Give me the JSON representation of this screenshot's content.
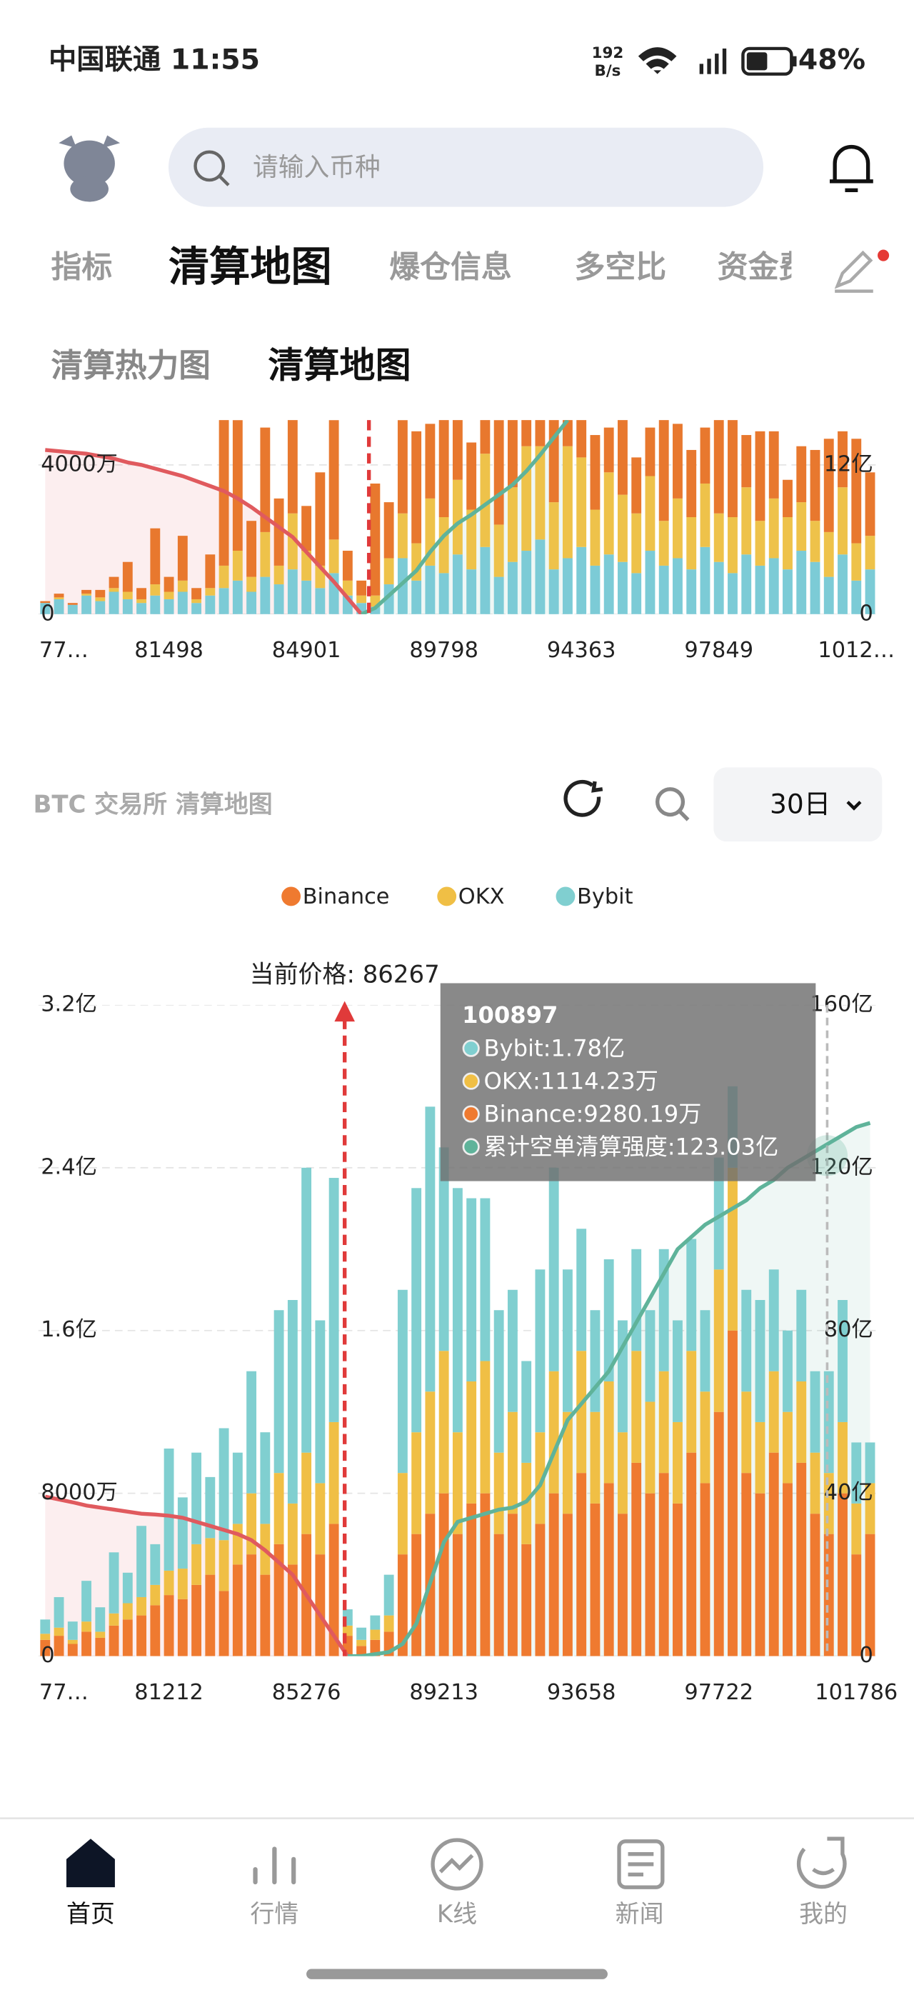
{
  "status_bar": {
    "carrier_time": "中国联通 11:55",
    "net_speed": "192",
    "net_unit": "B/s",
    "battery": "48%"
  },
  "search": {
    "placeholder": "请输入币种"
  },
  "tabs": [
    "指标",
    "清算地图",
    "爆仓信息",
    "多空比",
    "资金费"
  ],
  "sub_tabs": [
    "清算热力图",
    "清算地图"
  ],
  "section": {
    "title": "BTC 交易所 清算地图",
    "period": "30日"
  },
  "chart_data": [
    {
      "type": "bar",
      "stacked": true,
      "grid": true,
      "categories": [
        "77…",
        null,
        null,
        null,
        null,
        null,
        null,
        null,
        null,
        "81498",
        null,
        null,
        null,
        null,
        null,
        null,
        null,
        null,
        null,
        "84901",
        null,
        null,
        null,
        null,
        null,
        null,
        null,
        null,
        null,
        "89798",
        null,
        null,
        null,
        null,
        null,
        null,
        null,
        null,
        null,
        "94363",
        null,
        null,
        null,
        null,
        null,
        null,
        null,
        null,
        null,
        "97849",
        null,
        null,
        null,
        null,
        null,
        null,
        null,
        null,
        null,
        "1012…",
        null
      ],
      "ylim": [
        0,
        5200
      ],
      "yticks": [
        0,
        {
          "value": 4000,
          "label": "4000万"
        }
      ],
      "y2lim": [
        0,
        15.6
      ],
      "y2ticks": [
        0,
        {
          "value": 12,
          "label": "12亿"
        }
      ],
      "series": [
        {
          "color": "#7ccbd6",
          "values": [
            300,
            400,
            250,
            500,
            350,
            600,
            400,
            300,
            500,
            400,
            600,
            300,
            500,
            700,
            900,
            600,
            1000,
            800,
            1200,
            900,
            700,
            1100,
            500,
            300,
            200,
            800,
            1500,
            900,
            1300,
            1100,
            1600,
            1200,
            1800,
            1000,
            1400,
            1700,
            2000,
            1200,
            1500,
            1800,
            1300,
            1600,
            1400,
            1100,
            1700,
            1300,
            1500,
            1200,
            1800,
            1400,
            1100,
            1600,
            1300,
            1500,
            1200,
            1700,
            1400,
            1000,
            1600,
            900,
            1200
          ]
        },
        {
          "color": "#eec24a",
          "values": [
            0,
            50,
            0,
            50,
            100,
            100,
            200,
            100,
            300,
            200,
            300,
            100,
            200,
            600,
            800,
            400,
            1200,
            500,
            1500,
            800,
            600,
            900,
            400,
            200,
            300,
            700,
            1200,
            1000,
            1800,
            1500,
            2000,
            1600,
            2500,
            1400,
            2000,
            2800,
            2500,
            1800,
            3000,
            2400,
            1500,
            2200,
            1800,
            1600,
            2000,
            1200,
            1600,
            1400,
            1700,
            1300,
            1500,
            1800,
            1200,
            1600,
            1400,
            1300,
            1100,
            1200,
            1800,
            1000,
            900
          ]
        },
        {
          "color": "#e8782e",
          "values": [
            50,
            100,
            50,
            100,
            200,
            300,
            800,
            300,
            1500,
            400,
            1200,
            300,
            900,
            4500,
            3500,
            1500,
            2800,
            1800,
            3600,
            1200,
            2500,
            3200,
            800,
            400,
            3000,
            1500,
            2500,
            3000,
            2000,
            3500,
            2200,
            1800,
            1500,
            2800,
            2600,
            1200,
            1500,
            3000,
            1400,
            1800,
            2000,
            1200,
            2200,
            1500,
            1300,
            2800,
            2000,
            1800,
            1500,
            2600,
            2700,
            1400,
            2400,
            1800,
            1000,
            1500,
            1900,
            2500,
            1500,
            2800,
            1700
          ]
        },
        {
          "type": "line",
          "axis": "y2",
          "color": "#e05a5e",
          "values": [
            13.2,
            13.1,
            13,
            12.9,
            12.7,
            12.5,
            12.2,
            12,
            11.7,
            11.4,
            11.1,
            10.7,
            10.3,
            9.9,
            9.3,
            8.6,
            7.8,
            7,
            6.2,
            5,
            3.8,
            2.6,
            1.3,
            0,
            null,
            null,
            null,
            null,
            null,
            null,
            null,
            null,
            null,
            null,
            null,
            null,
            null,
            null,
            null,
            null,
            null,
            null,
            null,
            null,
            null,
            null,
            null,
            null,
            null,
            null,
            null,
            null,
            null,
            null,
            null,
            null,
            null,
            null,
            null,
            null,
            null
          ]
        },
        {
          "type": "line",
          "axis": "y2",
          "color": "#5fb39a",
          "values": [
            null,
            null,
            null,
            null,
            null,
            null,
            null,
            null,
            null,
            null,
            null,
            null,
            null,
            null,
            null,
            null,
            null,
            null,
            null,
            null,
            null,
            null,
            null,
            0,
            0.5,
            1.5,
            2.5,
            3.5,
            5,
            6.3,
            7.3,
            8,
            8.8,
            9.6,
            10.4,
            11.5,
            12.8,
            14.2,
            15.6,
            null,
            null,
            null,
            null,
            null,
            null,
            null,
            null,
            null,
            null,
            null,
            null,
            null,
            null,
            null,
            null,
            null,
            null,
            null,
            null,
            null,
            null
          ]
        }
      ]
    },
    {
      "type": "bar",
      "stacked": true,
      "grid": true,
      "legend": true,
      "annotation": "当前价格: 86267",
      "categories": [
        "77…",
        null,
        null,
        null,
        null,
        null,
        null,
        null,
        null,
        "81212",
        null,
        null,
        null,
        null,
        null,
        null,
        null,
        null,
        null,
        "85276",
        null,
        null,
        null,
        null,
        null,
        null,
        null,
        null,
        null,
        "89213",
        null,
        null,
        null,
        null,
        null,
        null,
        null,
        null,
        null,
        "93658",
        null,
        null,
        null,
        null,
        null,
        null,
        null,
        null,
        null,
        "97722",
        null,
        null,
        null,
        null,
        null,
        null,
        null,
        null,
        null,
        "101786",
        null
      ],
      "ylim": [
        0,
        32000
      ],
      "yticks": [
        0,
        {
          "value": 8000,
          "label": "8000万"
        },
        {
          "value": 16000,
          "label": "1.6亿"
        },
        {
          "value": 24000,
          "label": "2.4亿"
        },
        {
          "value": 32000,
          "label": "3.2亿"
        }
      ],
      "y2lim": [
        0,
        160
      ],
      "y2ticks": [
        0,
        {
          "value": 40,
          "label": "40亿"
        },
        {
          "value": 80,
          "label": "80亿"
        },
        {
          "value": 120,
          "label": "120亿"
        },
        {
          "value": 160,
          "label": "160亿"
        }
      ],
      "series": [
        {
          "name": "Binance",
          "color": "#ef7a30",
          "values": [
            800,
            1000,
            600,
            1200,
            900,
            1500,
            1800,
            2000,
            2500,
            3000,
            2800,
            3500,
            4000,
            3200,
            4500,
            5000,
            4000,
            5500,
            4500,
            6000,
            5000,
            6500,
            1000,
            500,
            800,
            1200,
            5000,
            6000,
            7000,
            8000,
            6000,
            7500,
            8000,
            6000,
            7000,
            5500,
            6500,
            8000,
            7000,
            9000,
            7500,
            8500,
            7000,
            9500,
            8000,
            9000,
            7500,
            10000,
            8500,
            12000,
            16000,
            9000,
            8000,
            10000,
            8500,
            9500,
            7000,
            6000,
            8000,
            5000,
            6000
          ]
        },
        {
          "name": "OKX",
          "color": "#f0bf45",
          "values": [
            300,
            400,
            200,
            500,
            300,
            600,
            800,
            900,
            1000,
            1200,
            1500,
            2000,
            1800,
            2500,
            2000,
            3000,
            2500,
            3500,
            3000,
            4000,
            3500,
            5000,
            500,
            300,
            500,
            800,
            4000,
            5000,
            6000,
            7000,
            5000,
            6000,
            6500,
            4000,
            5000,
            4000,
            4500,
            6000,
            5000,
            6000,
            4500,
            5000,
            4000,
            5500,
            4500,
            5000,
            4000,
            5000,
            4500,
            7000,
            8000,
            4000,
            3500,
            4000,
            3500,
            4000,
            3000,
            3000,
            3500,
            2500,
            2500
          ]
        },
        {
          "name": "Bybit",
          "color": "#80cfd0",
          "values": [
            700,
            1500,
            900,
            2000,
            1200,
            3000,
            1500,
            3500,
            2000,
            6000,
            3500,
            4500,
            3000,
            5500,
            3500,
            6000,
            4500,
            8000,
            10000,
            14000,
            8000,
            12000,
            800,
            600,
            700,
            2000,
            9000,
            12000,
            14000,
            10000,
            12000,
            9000,
            8000,
            7000,
            6000,
            5000,
            8000,
            10000,
            7000,
            6000,
            5000,
            6000,
            5500,
            5000,
            4500,
            6000,
            5000,
            5500,
            4000,
            5500,
            4000,
            5000,
            6000,
            5000,
            4000,
            4500,
            4000,
            5000,
            6000,
            3000,
            2000
          ]
        },
        {
          "type": "line",
          "axis": "y2",
          "color": "#e05a5e",
          "values": [
            39.2,
            38.5,
            37.8,
            37,
            36.5,
            36,
            35.5,
            35,
            34.8,
            34.5,
            34,
            33,
            32,
            31,
            30,
            28.5,
            26,
            23,
            20,
            15,
            10,
            5,
            0,
            null,
            null,
            null,
            null,
            null,
            null,
            null,
            null,
            null,
            null,
            null,
            null,
            null,
            null,
            null,
            null,
            null,
            null,
            null,
            null,
            null,
            null,
            null,
            null,
            null,
            null,
            null,
            null,
            null,
            null,
            null,
            null,
            null,
            null,
            null,
            null,
            null,
            null
          ]
        },
        {
          "type": "line",
          "axis": "y2",
          "color": "#5fb39a",
          "values": [
            null,
            null,
            null,
            null,
            null,
            null,
            null,
            null,
            null,
            null,
            null,
            null,
            null,
            null,
            null,
            null,
            null,
            null,
            null,
            null,
            null,
            null,
            0,
            0,
            0.5,
            1,
            3,
            8,
            18,
            28,
            33,
            34,
            35,
            36,
            36.5,
            38,
            42,
            50,
            58,
            62,
            66,
            70,
            76,
            82,
            88,
            94,
            100,
            103,
            106,
            108,
            110,
            112,
            115,
            117,
            120,
            122,
            124,
            126,
            128,
            130,
            131
          ]
        }
      ],
      "tooltip": {
        "title": "100897",
        "items": [
          "Bybit:1.78亿",
          "OKX:1114.23万",
          "Binance:9280.19万",
          "累计空单清算强度:123.03亿"
        ]
      }
    }
  ],
  "bottom_nav": [
    "首页",
    "行情",
    "K线",
    "新闻",
    "我的"
  ]
}
